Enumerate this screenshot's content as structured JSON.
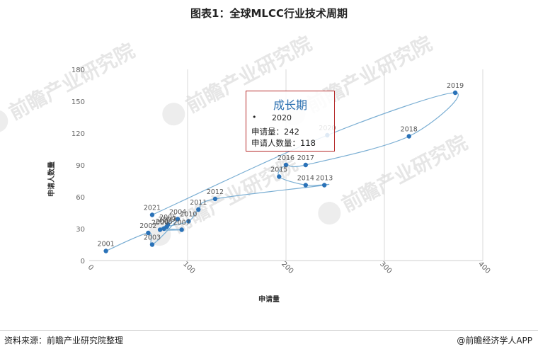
{
  "title": "图表1：全球MLCC行业技术周期",
  "tooltip": {
    "title": "成长期",
    "bullet": "•",
    "year": "2020",
    "line1": "申请量：242",
    "line2": "申请人数量：118"
  },
  "footer": {
    "source": "资料来源：前瞻产业研究院整理",
    "brand": "@前瞻经济学人APP"
  },
  "watermark": {
    "text": "前瞻产业研究院"
  },
  "chart_data": {
    "type": "scatter",
    "xlabel": "申请量",
    "ylabel": "申请人数量",
    "xlim": [
      0,
      400
    ],
    "ylim": [
      0,
      180
    ],
    "x_ticks": [
      0,
      100,
      200,
      300,
      400
    ],
    "y_ticks": [
      0,
      30,
      60,
      90,
      120,
      150,
      180
    ],
    "grid": "vertical",
    "connected": true,
    "points": [
      {
        "label": "2001",
        "x": 17,
        "y": 9
      },
      {
        "label": "2002",
        "x": 60,
        "y": 26
      },
      {
        "label": "2003",
        "x": 64,
        "y": 15
      },
      {
        "label": "2004",
        "x": 90,
        "y": 39
      },
      {
        "label": "2005",
        "x": 80,
        "y": 34
      },
      {
        "label": "2006",
        "x": 72,
        "y": 29
      },
      {
        "label": "2007",
        "x": 94,
        "y": 29
      },
      {
        "label": "2008",
        "x": 76,
        "y": 30
      },
      {
        "label": "2009",
        "x": 79,
        "y": 32
      },
      {
        "label": "2010",
        "x": 101,
        "y": 37
      },
      {
        "label": "2011",
        "x": 111,
        "y": 48
      },
      {
        "label": "2012",
        "x": 128,
        "y": 58
      },
      {
        "label": "2013",
        "x": 239,
        "y": 71
      },
      {
        "label": "2014",
        "x": 220,
        "y": 71
      },
      {
        "label": "2015",
        "x": 193,
        "y": 79
      },
      {
        "label": "2016",
        "x": 200,
        "y": 90
      },
      {
        "label": "2017",
        "x": 220,
        "y": 90
      },
      {
        "label": "2018",
        "x": 325,
        "y": 117
      },
      {
        "label": "2019",
        "x": 372,
        "y": 158
      },
      {
        "label": "2020",
        "x": 242,
        "y": 118
      },
      {
        "label": "2021",
        "x": 64,
        "y": 43
      }
    ]
  },
  "colors": {
    "series": "#2a72b8",
    "line": "#7aaed3",
    "tooltip_border": "#b52a2a",
    "tooltip_title": "#2c70b0"
  }
}
